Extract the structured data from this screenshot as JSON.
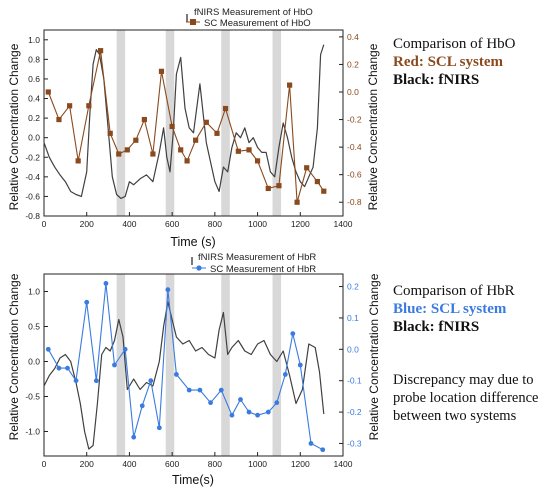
{
  "notes": {
    "top": {
      "line1": "Comparison of HbO",
      "line2": "Red: SCL system",
      "line3": "Black: fNIRS"
    },
    "bottom": {
      "line1": "Comparison of HbR",
      "line2": "Blue: SCL system",
      "line3": "Black: fNIRS"
    },
    "discrepancy": "Discrepancy may due to probe location difference between two systems"
  },
  "colors": {
    "fnirs": "#404040",
    "hbo_sc": "#8B4A1E",
    "hbr_sc": "#3A7BE0",
    "band": "#d8d8d8"
  },
  "chart_data": [
    {
      "id": "hbo",
      "type": "line",
      "xlabel": "Time (s)",
      "ylabel_left": "Relative Concentration Change",
      "ylabel_right": "Relative Concentration Change",
      "xlim": [
        0,
        1400
      ],
      "ylim_left": [
        -0.8,
        1.1
      ],
      "ylim_right": [
        -0.9,
        0.45
      ],
      "xticks": [
        0,
        200,
        400,
        600,
        800,
        1000,
        1200,
        1400
      ],
      "yticks_left": [
        -0.8,
        -0.6,
        -0.4,
        -0.2,
        0.0,
        0.2,
        0.4,
        0.6,
        0.8,
        1.0
      ],
      "yticks_right": [
        -0.8,
        -0.6,
        -0.4,
        -0.2,
        0.0,
        0.2,
        0.4
      ],
      "tick_labels_left": [
        "-0.8",
        "-0.6",
        "-0.4",
        "-0.2",
        "0.0",
        "0.2",
        "0.4",
        "0.6",
        "0.8",
        "1.0"
      ],
      "tick_labels_right": [
        "-0.8",
        "-0.6",
        "-0.4",
        "-0.2",
        "0.0",
        "0.2",
        "0.4"
      ],
      "tick_labels_x": [
        "0",
        "200",
        "400",
        "600",
        "800",
        "1000",
        "1200",
        "1400"
      ],
      "legend": {
        "placement": "top-center",
        "entries": [
          "fNIRS Measurement of HbO",
          "SC Measurement of HbO"
        ]
      },
      "shaded_bands": [
        [
          340,
          380
        ],
        [
          570,
          610
        ],
        [
          830,
          870
        ],
        [
          1070,
          1110
        ]
      ],
      "series": [
        {
          "name": "fNIRS Measurement of HbO",
          "axis": "left",
          "x": [
            0,
            25,
            50,
            75,
            100,
            125,
            150,
            175,
            200,
            215,
            230,
            245,
            260,
            280,
            300,
            320,
            340,
            360,
            380,
            400,
            420,
            450,
            480,
            510,
            540,
            560,
            575,
            590,
            605,
            620,
            640,
            660,
            680,
            700,
            715,
            730,
            745,
            760,
            780,
            800,
            820,
            840,
            860,
            880,
            900,
            920,
            940,
            960,
            980,
            1000,
            1020,
            1040,
            1060,
            1080,
            1100,
            1120,
            1140,
            1160,
            1180,
            1200,
            1220,
            1240,
            1260,
            1280,
            1295,
            1310
          ],
          "y": [
            -0.05,
            -0.2,
            -0.3,
            -0.38,
            -0.45,
            -0.55,
            -0.58,
            -0.6,
            -0.35,
            0.25,
            0.75,
            0.9,
            0.85,
            0.6,
            0.1,
            -0.4,
            -0.58,
            -0.62,
            -0.6,
            -0.45,
            -0.48,
            -0.42,
            -0.38,
            -0.45,
            -0.15,
            0.1,
            -0.2,
            -0.35,
            0.05,
            0.65,
            0.82,
            0.3,
            0.1,
            0.05,
            0.3,
            0.55,
            0.25,
            -0.05,
            -0.25,
            -0.45,
            -0.55,
            -0.3,
            -0.35,
            -0.1,
            0.05,
            0.0,
            0.1,
            -0.05,
            0.0,
            -0.1,
            -0.15,
            -0.15,
            -0.35,
            -0.4,
            -0.1,
            0.15,
            0.0,
            -0.2,
            -0.35,
            -0.45,
            -0.5,
            -0.4,
            -0.3,
            0.1,
            0.85,
            0.95
          ]
        },
        {
          "name": "SC Measurement of HbO",
          "axis": "right",
          "x": [
            20,
            70,
            120,
            160,
            210,
            265,
            310,
            350,
            390,
            430,
            470,
            510,
            550,
            600,
            640,
            670,
            710,
            760,
            810,
            850,
            910,
            960,
            1000,
            1050,
            1100,
            1150,
            1185,
            1230,
            1280,
            1310
          ],
          "y": [
            0.0,
            -0.2,
            -0.1,
            -0.5,
            -0.1,
            0.3,
            -0.3,
            -0.45,
            -0.42,
            -0.35,
            -0.2,
            -0.45,
            0.15,
            -0.25,
            -0.42,
            -0.5,
            -0.35,
            -0.22,
            -0.3,
            -0.12,
            -0.43,
            -0.42,
            -0.5,
            -0.7,
            -0.68,
            0.05,
            -0.8,
            -0.55,
            -0.65,
            -0.72
          ]
        }
      ]
    },
    {
      "id": "hbr",
      "type": "line",
      "xlabel": "Time(s)",
      "ylabel_left": "Relative Concentration Change",
      "ylabel_right": "Relative Concentration Change",
      "xlim": [
        0,
        1400
      ],
      "ylim_left": [
        -1.35,
        1.25
      ],
      "ylim_right": [
        -0.34,
        0.24
      ],
      "xticks": [
        0,
        200,
        400,
        600,
        800,
        1000,
        1200,
        1400
      ],
      "yticks_left": [
        -1.0,
        -0.5,
        0.0,
        0.5,
        1.0
      ],
      "yticks_right": [
        -0.3,
        -0.2,
        -0.1,
        0.0,
        0.1,
        0.2
      ],
      "tick_labels_left": [
        "-1.0",
        "-0.5",
        "0.0",
        "0.5",
        "1.0"
      ],
      "tick_labels_right": [
        "-0.3",
        "-0.2",
        "-0.1",
        "0.0",
        "0.1",
        "0.2"
      ],
      "tick_labels_x": [
        "0",
        "200",
        "400",
        "600",
        "800",
        "1000",
        "1200",
        "1400"
      ],
      "legend": {
        "placement": "top-center",
        "entries": [
          "fNIRS Measurement of HbR",
          "SC Measurement of HbR"
        ]
      },
      "shaded_bands": [
        [
          340,
          380
        ],
        [
          570,
          610
        ],
        [
          830,
          870
        ],
        [
          1070,
          1110
        ]
      ],
      "series": [
        {
          "name": "fNIRS Measurement of HbR",
          "axis": "left",
          "x": [
            0,
            25,
            50,
            75,
            100,
            125,
            150,
            170,
            190,
            210,
            230,
            250,
            270,
            290,
            310,
            330,
            350,
            370,
            390,
            420,
            450,
            480,
            510,
            540,
            560,
            580,
            600,
            620,
            650,
            680,
            710,
            740,
            770,
            800,
            820,
            840,
            860,
            880,
            910,
            940,
            970,
            1000,
            1030,
            1060,
            1090,
            1120,
            1150,
            1180,
            1210,
            1240,
            1270,
            1290,
            1310
          ],
          "y": [
            -0.35,
            -0.2,
            -0.1,
            0.05,
            0.1,
            0.0,
            -0.3,
            -0.6,
            -1.0,
            -1.25,
            -1.2,
            -0.6,
            0.1,
            0.2,
            0.15,
            0.3,
            0.6,
            0.35,
            -0.4,
            -0.25,
            -0.4,
            -0.3,
            -0.35,
            0.0,
            0.5,
            0.85,
            0.6,
            0.35,
            0.25,
            0.3,
            0.15,
            0.2,
            0.1,
            0.05,
            0.45,
            0.7,
            0.1,
            0.2,
            0.3,
            0.15,
            0.1,
            0.25,
            0.3,
            0.1,
            0.0,
            0.15,
            -0.2,
            -0.6,
            -0.4,
            0.25,
            0.2,
            -0.15,
            -0.75
          ]
        },
        {
          "name": "SC Measurement of HbR",
          "axis": "right",
          "x": [
            20,
            70,
            110,
            150,
            200,
            245,
            290,
            330,
            380,
            420,
            460,
            500,
            540,
            580,
            620,
            680,
            730,
            780,
            830,
            880,
            920,
            960,
            1000,
            1050,
            1090,
            1130,
            1165,
            1200,
            1250,
            1305
          ],
          "y": [
            0.0,
            -0.06,
            -0.06,
            -0.1,
            0.15,
            -0.1,
            0.21,
            -0.05,
            0.0,
            -0.28,
            -0.18,
            -0.1,
            -0.25,
            0.19,
            -0.08,
            -0.13,
            -0.13,
            -0.17,
            -0.13,
            -0.21,
            -0.16,
            -0.2,
            -0.21,
            -0.2,
            -0.17,
            -0.08,
            0.05,
            -0.05,
            -0.3,
            -0.32
          ]
        }
      ]
    }
  ]
}
